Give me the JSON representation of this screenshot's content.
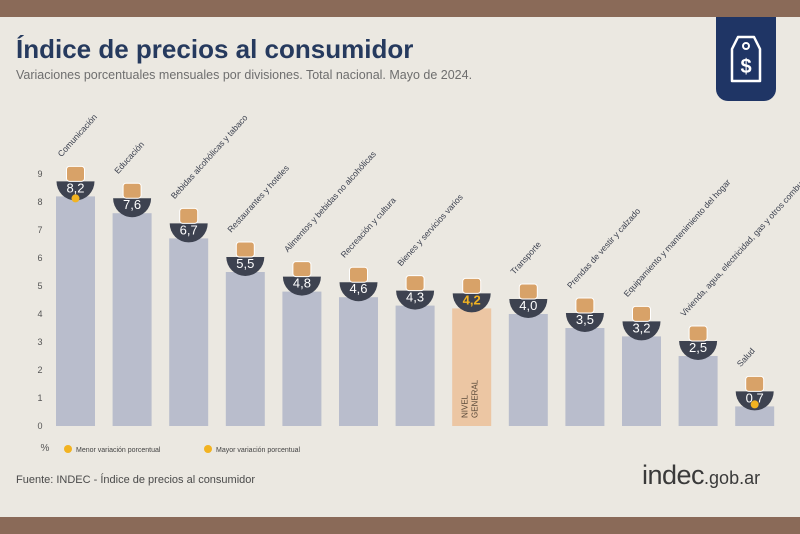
{
  "title": "Índice de precios al consumidor",
  "subtitle": "Variaciones porcentuales mensuales por divisiones. Total nacional. Mayo de 2024.",
  "source": "Fuente: INDEC - Índice de precios al consumidor",
  "logo": {
    "main": "indec",
    "domain": ".gob.ar"
  },
  "colors": {
    "bar": "#b9bdcc",
    "highlight": "#ecc6a3",
    "badge": "#3d4250",
    "accent": "#f2b321",
    "frame": "#8a6a58",
    "navy": "#1f3565"
  },
  "chart_data": {
    "type": "bar",
    "categories": [
      "Comunicación",
      "Educación",
      "Bebidas alcohólicas y tabaco",
      "Restaurantes y hoteles",
      "Alimentos y bebidas no alcohólicas",
      "Recreación y cultura",
      "Bienes y servicios varios",
      "NIVEL GENERAL",
      "Transporte",
      "Prendas de vestir y calzado",
      "Equipamiento y mantenimiento del hogar",
      "Vivienda, agua, electricidad, gas y otros combustibles",
      "Salud"
    ],
    "values": [
      8.2,
      7.6,
      6.7,
      5.5,
      4.8,
      4.6,
      4.3,
      4.2,
      4.0,
      3.5,
      3.2,
      2.5,
      0.7
    ],
    "value_labels": [
      "8,2",
      "7,6",
      "6,7",
      "5,5",
      "4,8",
      "4,6",
      "4,3",
      "4,2",
      "4,0",
      "3,5",
      "3,2",
      "2,5",
      "0,7"
    ],
    "highlight_index": 7,
    "ylim": [
      0,
      9
    ],
    "yticks": [
      "0",
      "1",
      "2",
      "3",
      "4",
      "5",
      "6",
      "7",
      "8",
      "9"
    ],
    "ylabel": "%",
    "legend": [
      {
        "label": "Menor variación porcentual",
        "marker_on": "Salud"
      },
      {
        "label": "Mayor variación porcentual",
        "marker_on": "Comunicación"
      }
    ],
    "legend_position": "bottom-left",
    "grid": false
  }
}
